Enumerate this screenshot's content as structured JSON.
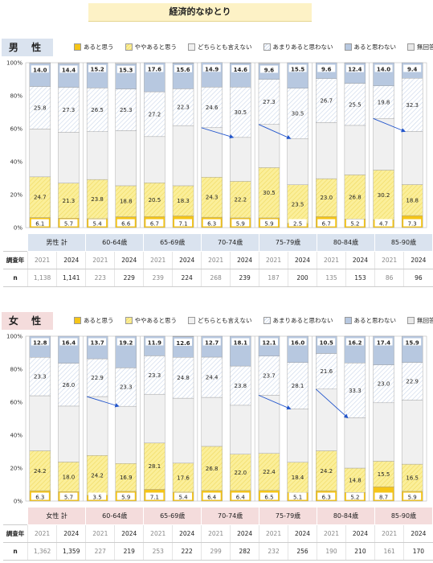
{
  "title": "経済的なゆとり",
  "legend": {
    "items": [
      "あると思う",
      "ややあると思う",
      "どちらとも言えない",
      "あまりあると思わない",
      "あると思わない",
      "無回答"
    ],
    "colors": [
      "#f5c518",
      "#fbef9a",
      "#f0f0f0",
      "#ffffff",
      "#b7c8e0",
      "#e8e8e8"
    ]
  },
  "table_labels": {
    "year_row": "調査年",
    "n_row": "n"
  },
  "chart_data": [
    {
      "type": "bar",
      "stacked": true,
      "panel_label": "男 性",
      "yticks": [
        "0%",
        "20%",
        "40%",
        "60%",
        "80%",
        "100%"
      ],
      "ylim": [
        0,
        100
      ],
      "groups": [
        "男性 計",
        "60-64歳",
        "65-69歳",
        "70-74歳",
        "75-79歳",
        "80-84歳",
        "85-90歳"
      ],
      "years": [
        "2021",
        "2024",
        "2021",
        "2024",
        "2021",
        "2024",
        "2021",
        "2024",
        "2021",
        "2024",
        "2021",
        "2024",
        "2021",
        "2024"
      ],
      "n": [
        "1,138",
        "1,141",
        "223",
        "229",
        "239",
        "224",
        "268",
        "239",
        "187",
        "200",
        "135",
        "153",
        "86",
        "96"
      ],
      "series": [
        {
          "name": "あると思う",
          "values": [
            6.1,
            5.7,
            5.4,
            6.6,
            6.7,
            7.1,
            6.3,
            5.9,
            5.9,
            2.5,
            6.7,
            5.2,
            4.7,
            7.3
          ]
        },
        {
          "name": "ややあると思う",
          "values": [
            24.7,
            21.3,
            23.8,
            18.8,
            20.5,
            18.3,
            24.3,
            22.2,
            30.5,
            23.5,
            23.0,
            26.8,
            30.2,
            18.8
          ]
        },
        {
          "name": "どちらとも言えない",
          "values": [
            29.0,
            30.8,
            29.0,
            33.4,
            28.0,
            36.5,
            30.0,
            26.6,
            26.2,
            28.0,
            34.0,
            30.0,
            31.3,
            32.2
          ]
        },
        {
          "name": "あまりあると思わない",
          "values": [
            25.8,
            27.3,
            26.5,
            25.3,
            27.2,
            22.3,
            24.6,
            30.5,
            27.3,
            30.5,
            26.7,
            25.5,
            19.8,
            32.3
          ]
        },
        {
          "name": "あると思わない",
          "values": [
            14.0,
            14.4,
            15.2,
            15.3,
            17.6,
            15.6,
            14.9,
            14.6,
            9.6,
            15.5,
            9.6,
            12.4,
            14.0,
            9.4
          ]
        },
        {
          "name": "無回答",
          "values": [
            0.4,
            0.5,
            0.1,
            0.6,
            0.0,
            0.2,
            0.0,
            0.2,
            0.5,
            0.0,
            0.0,
            0.1,
            0.0,
            0.0
          ]
        }
      ],
      "arrows": [
        6,
        8,
        12
      ]
    },
    {
      "type": "bar",
      "stacked": true,
      "panel_label": "女 性",
      "yticks": [
        "0%",
        "20%",
        "40%",
        "60%",
        "80%",
        "100%"
      ],
      "ylim": [
        0,
        100
      ],
      "groups": [
        "女性 計",
        "60-64歳",
        "65-69歳",
        "70-74歳",
        "75-79歳",
        "80-84歳",
        "85-90歳"
      ],
      "years": [
        "2021",
        "2024",
        "2021",
        "2024",
        "2021",
        "2024",
        "2021",
        "2024",
        "2021",
        "2024",
        "2021",
        "2024",
        "2021",
        "2024"
      ],
      "n": [
        "1,362",
        "1,359",
        "227",
        "219",
        "253",
        "222",
        "299",
        "282",
        "232",
        "256",
        "190",
        "210",
        "161",
        "170"
      ],
      "series": [
        {
          "name": "あると思う",
          "values": [
            6.3,
            5.7,
            3.5,
            5.9,
            7.1,
            5.4,
            6.4,
            6.4,
            6.5,
            5.1,
            6.3,
            5.2,
            8.7,
            5.9
          ]
        },
        {
          "name": "ややあると思う",
          "values": [
            24.2,
            18.0,
            24.2,
            16.9,
            28.1,
            17.6,
            26.8,
            22.0,
            22.4,
            18.4,
            24.2,
            14.8,
            15.5,
            16.5
          ]
        },
        {
          "name": "どちらとも言えない",
          "values": [
            33.4,
            33.9,
            35.7,
            34.7,
            29.6,
            39.4,
            29.7,
            29.7,
            35.3,
            32.4,
            37.4,
            30.5,
            35.4,
            38.8
          ]
        },
        {
          "name": "あまりあると思わない",
          "values": [
            23.3,
            26.0,
            22.9,
            23.3,
            23.3,
            24.8,
            24.4,
            23.8,
            23.7,
            28.1,
            21.6,
            33.3,
            23.0,
            22.9
          ]
        },
        {
          "name": "あると思わない",
          "values": [
            12.8,
            16.4,
            13.7,
            19.2,
            11.9,
            12.6,
            12.7,
            18.1,
            12.1,
            16.0,
            10.5,
            16.2,
            17.4,
            15.9
          ]
        },
        {
          "name": "無回答",
          "values": [
            0.0,
            0.0,
            0.0,
            0.0,
            0.0,
            0.2,
            0.0,
            0.0,
            0.0,
            0.0,
            0.0,
            0.0,
            0.0,
            0.0
          ]
        }
      ],
      "arrows": [
        2,
        8,
        10
      ]
    }
  ]
}
